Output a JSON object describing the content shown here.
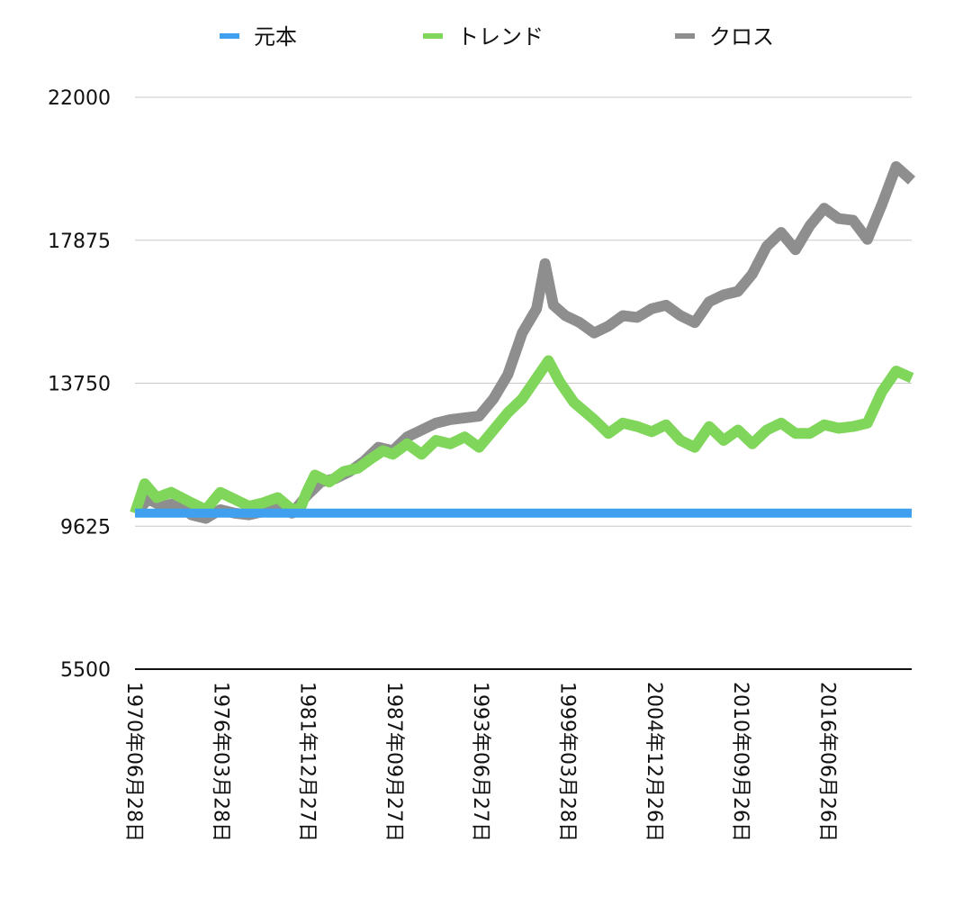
{
  "chart_data": {
    "type": "line",
    "title": "",
    "xlabel": "",
    "ylabel": "",
    "ylim": [
      5500,
      22000
    ],
    "y_ticks": [
      "22000",
      "17875",
      "13750",
      "9625",
      "5500"
    ],
    "x_tick_labels": [
      "1970年06月28日",
      "1976年03月28日",
      "1981年12月27日",
      "1987年09月27日",
      "1993年06月27日",
      "1999年03月28日",
      "2004年12月26日",
      "2010年09月26日",
      "2016年06月26日"
    ],
    "x_range": [
      "1970-06-28",
      "2024-06-30"
    ],
    "grid": true,
    "legend_position": "top",
    "series": [
      {
        "name": "元本",
        "color": "#3fa0f0",
        "points": [
          [
            "1970-06-28",
            10000
          ],
          [
            "2024-06-30",
            10000
          ]
        ]
      },
      {
        "name": "トレンド",
        "color": "#80d65a",
        "points": [
          [
            "1970-06-28",
            10000
          ],
          [
            "1971-03-01",
            10850
          ],
          [
            "1972-01-01",
            10450
          ],
          [
            "1973-01-01",
            10600
          ],
          [
            "1974-06-01",
            10300
          ],
          [
            "1975-06-01",
            10100
          ],
          [
            "1976-06-01",
            10600
          ],
          [
            "1977-06-01",
            10400
          ],
          [
            "1978-06-01",
            10200
          ],
          [
            "1979-06-01",
            10300
          ],
          [
            "1980-06-01",
            10450
          ],
          [
            "1981-06-01",
            10100
          ],
          [
            "1982-01-01",
            10150
          ],
          [
            "1982-06-01",
            10600
          ],
          [
            "1983-01-01",
            11100
          ],
          [
            "1984-01-01",
            10900
          ],
          [
            "1985-01-01",
            11200
          ],
          [
            "1986-01-01",
            11300
          ],
          [
            "1987-01-01",
            11600
          ],
          [
            "1987-09-27",
            11800
          ],
          [
            "1988-06-01",
            11700
          ],
          [
            "1989-06-01",
            12000
          ],
          [
            "1990-06-01",
            11700
          ],
          [
            "1991-06-01",
            12100
          ],
          [
            "1992-06-01",
            12000
          ],
          [
            "1993-06-01",
            12200
          ],
          [
            "1994-06-01",
            11900
          ],
          [
            "1995-06-01",
            12400
          ],
          [
            "1996-06-01",
            12900
          ],
          [
            "1997-06-01",
            13300
          ],
          [
            "1998-06-01",
            13900
          ],
          [
            "1999-03-28",
            14400
          ],
          [
            "2000-01-01",
            13800
          ],
          [
            "2001-01-01",
            13200
          ],
          [
            "2002-06-01",
            12700
          ],
          [
            "2003-06-01",
            12300
          ],
          [
            "2004-06-01",
            12600
          ],
          [
            "2005-06-01",
            12500
          ],
          [
            "2006-06-01",
            12350
          ],
          [
            "2007-06-01",
            12550
          ],
          [
            "2008-06-01",
            12100
          ],
          [
            "2009-06-01",
            11900
          ],
          [
            "2010-06-01",
            12500
          ],
          [
            "2011-06-01",
            12100
          ],
          [
            "2012-06-01",
            12400
          ],
          [
            "2013-06-01",
            12000
          ],
          [
            "2014-06-01",
            12400
          ],
          [
            "2015-06-01",
            12600
          ],
          [
            "2016-06-01",
            12300
          ],
          [
            "2017-06-01",
            12300
          ],
          [
            "2018-06-01",
            12550
          ],
          [
            "2019-06-01",
            12450
          ],
          [
            "2020-06-01",
            12500
          ],
          [
            "2021-06-01",
            12600
          ],
          [
            "2022-06-01",
            13500
          ],
          [
            "2023-06-01",
            14100
          ],
          [
            "2024-06-30",
            13900
          ]
        ]
      },
      {
        "name": "クロス",
        "color": "#8e8e8e",
        "points": [
          [
            "1970-06-28",
            10000
          ],
          [
            "1971-06-01",
            10400
          ],
          [
            "1972-06-01",
            10200
          ],
          [
            "1973-06-01",
            10300
          ],
          [
            "1974-06-01",
            9950
          ],
          [
            "1975-06-01",
            9850
          ],
          [
            "1976-06-01",
            10100
          ],
          [
            "1977-06-01",
            10000
          ],
          [
            "1978-06-01",
            9950
          ],
          [
            "1979-06-01",
            10050
          ],
          [
            "1980-06-01",
            10200
          ],
          [
            "1981-06-01",
            10000
          ],
          [
            "1982-06-01",
            10500
          ],
          [
            "1983-06-01",
            10900
          ],
          [
            "1984-06-01",
            11000
          ],
          [
            "1985-06-01",
            11200
          ],
          [
            "1986-06-01",
            11500
          ],
          [
            "1987-06-01",
            11900
          ],
          [
            "1988-06-01",
            11800
          ],
          [
            "1989-06-01",
            12200
          ],
          [
            "1990-06-01",
            12400
          ],
          [
            "1991-06-01",
            12600
          ],
          [
            "1992-06-01",
            12700
          ],
          [
            "1993-06-01",
            12750
          ],
          [
            "1994-06-01",
            12800
          ],
          [
            "1995-06-01",
            13300
          ],
          [
            "1996-06-01",
            14000
          ],
          [
            "1997-06-01",
            15200
          ],
          [
            "1998-06-01",
            15900
          ],
          [
            "1999-01-01",
            17200
          ],
          [
            "1999-08-01",
            16000
          ],
          [
            "2000-06-01",
            15700
          ],
          [
            "2001-06-01",
            15500
          ],
          [
            "2002-06-01",
            15200
          ],
          [
            "2003-06-01",
            15400
          ],
          [
            "2004-06-01",
            15700
          ],
          [
            "2005-06-01",
            15650
          ],
          [
            "2006-06-01",
            15900
          ],
          [
            "2007-06-01",
            16000
          ],
          [
            "2008-06-01",
            15700
          ],
          [
            "2009-06-01",
            15500
          ],
          [
            "2010-06-01",
            16100
          ],
          [
            "2011-06-01",
            16300
          ],
          [
            "2012-06-01",
            16400
          ],
          [
            "2013-06-01",
            16900
          ],
          [
            "2014-06-01",
            17700
          ],
          [
            "2015-06-01",
            18100
          ],
          [
            "2016-06-01",
            17600
          ],
          [
            "2017-06-01",
            18300
          ],
          [
            "2018-06-01",
            18800
          ],
          [
            "2019-06-01",
            18500
          ],
          [
            "2020-06-01",
            18450
          ],
          [
            "2021-06-01",
            17900
          ],
          [
            "2022-06-01",
            18900
          ],
          [
            "2023-06-01",
            20000
          ],
          [
            "2024-06-30",
            19600
          ]
        ]
      }
    ]
  }
}
